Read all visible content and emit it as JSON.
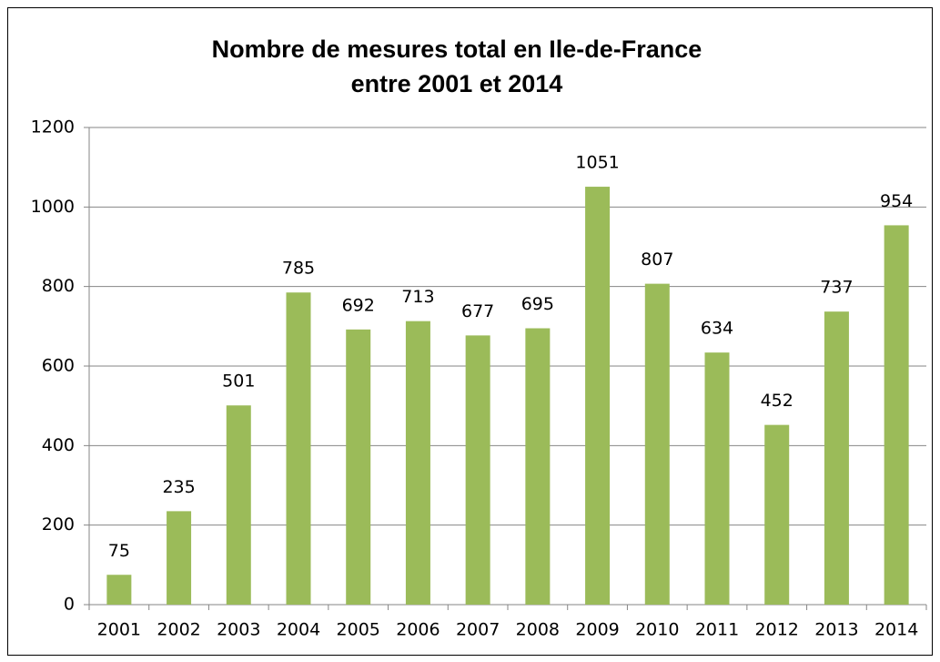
{
  "chart_data": {
    "type": "bar",
    "title": [
      "Nombre de mesures total en Ile-de-France",
      "entre 2001 et 2014"
    ],
    "categories": [
      "2001",
      "2002",
      "2003",
      "2004",
      "2005",
      "2006",
      "2007",
      "2008",
      "2009",
      "2010",
      "2011",
      "2012",
      "2013",
      "2014"
    ],
    "values": [
      75,
      235,
      501,
      785,
      692,
      713,
      677,
      695,
      1051,
      807,
      634,
      452,
      737,
      954
    ],
    "color": "#9bbb59",
    "ylim": [
      0,
      1200
    ],
    "yticks": [
      0,
      200,
      400,
      600,
      800,
      1000,
      1200
    ],
    "grid": true,
    "data_labels": true
  }
}
